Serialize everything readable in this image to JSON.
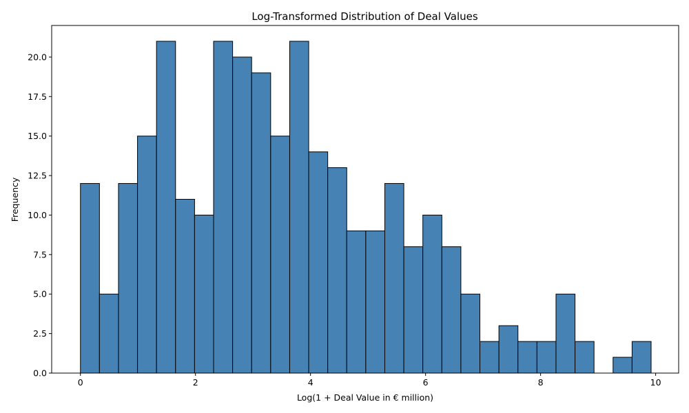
{
  "chart_data": {
    "type": "bar",
    "title": "Log-Transformed Distribution of Deal Values",
    "xlabel": "Log(1 + Deal Value in € million)",
    "ylabel": "Frequency",
    "bin_start": 0,
    "bin_width": 0.3307,
    "values": [
      12,
      5,
      12,
      15,
      21,
      11,
      10,
      21,
      20,
      19,
      15,
      21,
      14,
      13,
      9,
      9,
      12,
      8,
      10,
      8,
      5,
      2,
      3,
      2,
      2,
      5,
      2,
      0,
      1,
      2
    ],
    "xlim": [
      -0.5,
      10.4
    ],
    "ylim": [
      0,
      22
    ],
    "x_ticks": [
      0,
      2,
      4,
      6,
      8,
      10
    ],
    "x_tick_labels": [
      "0",
      "2",
      "4",
      "6",
      "8",
      "10"
    ],
    "y_ticks": [
      0,
      2.5,
      5,
      7.5,
      10,
      12.5,
      15,
      17.5,
      20
    ],
    "y_tick_labels": [
      "0.0",
      "2.5",
      "5.0",
      "7.5",
      "10.0",
      "12.5",
      "15.0",
      "17.5",
      "20.0"
    ],
    "bar_color": "#4682b4",
    "edge_color": "#000000",
    "grid": false,
    "legend": "none"
  }
}
